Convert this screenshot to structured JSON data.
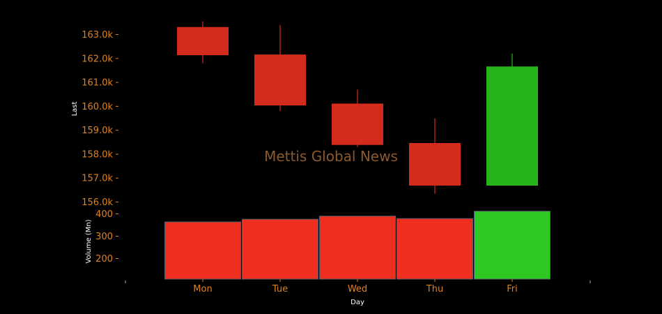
{
  "chart_data": {
    "type": "candlestick",
    "watermark": "Mettis Global News",
    "categories": [
      "Mon",
      "Tue",
      "Wed",
      "Thu",
      "Fri"
    ],
    "xlabel": "Day",
    "price": {
      "ylabel": "Last",
      "ylim": [
        155900,
        163600
      ],
      "ticks": [
        156000,
        157000,
        158000,
        159000,
        160000,
        161000,
        162000,
        163000
      ],
      "tick_labels": [
        "156.0k",
        "157.0k",
        "158.0k",
        "159.0k",
        "160.0k",
        "161.0k",
        "162.0k",
        "163.0k"
      ],
      "candles": [
        {
          "day": "Mon",
          "open": 163300,
          "high": 163550,
          "low": 161800,
          "close": 162150,
          "direction": "down"
        },
        {
          "day": "Tue",
          "open": 162150,
          "high": 163400,
          "low": 159800,
          "close": 160050,
          "direction": "down"
        },
        {
          "day": "Wed",
          "open": 160100,
          "high": 160700,
          "low": 158300,
          "close": 158400,
          "direction": "down"
        },
        {
          "day": "Thu",
          "open": 158450,
          "high": 159500,
          "low": 156350,
          "close": 156700,
          "direction": "down"
        },
        {
          "day": "Fri",
          "open": 156700,
          "high": 162200,
          "low": 156700,
          "close": 161650,
          "direction": "up"
        }
      ]
    },
    "volume": {
      "ylabel": "Volume (Mn)",
      "ylim": [
        110,
        415
      ],
      "ticks": [
        200,
        300,
        400
      ],
      "tick_labels": [
        "200",
        "300",
        "400"
      ],
      "values": [
        364,
        376,
        390,
        379,
        412
      ],
      "direction": [
        "down",
        "down",
        "down",
        "down",
        "up"
      ]
    },
    "colors": {
      "down_candle": "#d42c1c",
      "up_candle": "#26b61c",
      "down_volume": "#ee2e1e",
      "up_volume": "#2ec822",
      "volume_edge": "#555b6e",
      "tick_label": "#e0821e",
      "axis_title": "#ffffff",
      "watermark": "#8a5a2e",
      "background": "#000000"
    }
  }
}
